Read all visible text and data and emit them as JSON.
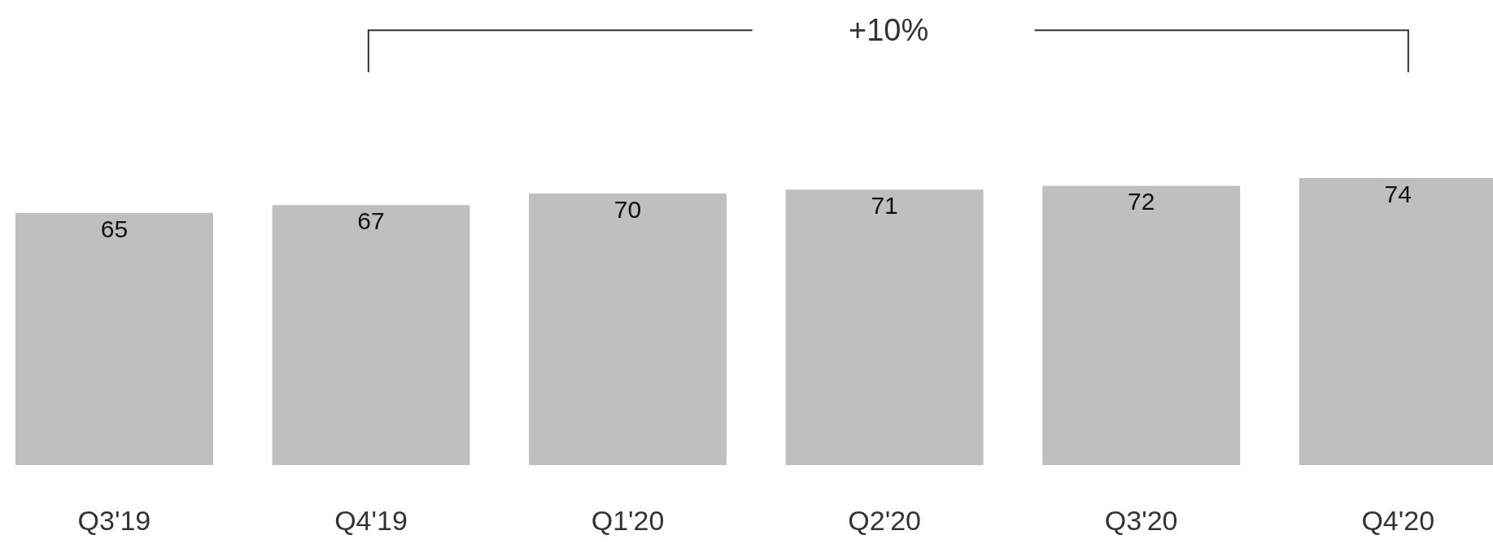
{
  "chart_data": {
    "type": "bar",
    "categories": [
      "Q3'19",
      "Q4'19",
      "Q1'20",
      "Q2'20",
      "Q3'20",
      "Q4'20"
    ],
    "values": [
      65,
      67,
      70,
      71,
      72,
      74
    ],
    "color": "#bfbfbf",
    "data_labels": true,
    "legend": false,
    "tick_labels": "x",
    "annotations": [
      "+10%"
    ]
  }
}
